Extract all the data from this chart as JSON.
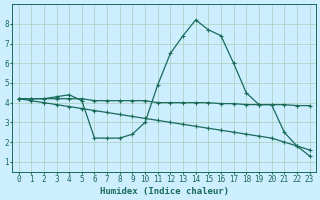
{
  "xlabel": "Humidex (Indice chaleur)",
  "bg_color": "#cceeff",
  "grid_color": "#aaccbb",
  "line_color": "#1a6b5a",
  "xlim": [
    -0.5,
    23.5
  ],
  "ylim": [
    0.5,
    9.0
  ],
  "yticks": [
    1,
    2,
    3,
    4,
    5,
    6,
    7,
    8
  ],
  "xticks": [
    0,
    1,
    2,
    3,
    4,
    5,
    6,
    7,
    8,
    9,
    10,
    11,
    12,
    13,
    14,
    15,
    16,
    17,
    18,
    19,
    20,
    21,
    22,
    23
  ],
  "series1_x": [
    0,
    1,
    2,
    3,
    4,
    5,
    6,
    7,
    8,
    9,
    10,
    11,
    12,
    13,
    14,
    15,
    16,
    17,
    18,
    19,
    20,
    21,
    22,
    23
  ],
  "series1_y": [
    4.2,
    4.2,
    4.2,
    4.2,
    4.2,
    4.2,
    4.1,
    4.1,
    4.1,
    4.1,
    4.1,
    4.0,
    4.0,
    4.0,
    4.0,
    4.0,
    3.95,
    3.95,
    3.9,
    3.9,
    3.9,
    3.9,
    3.85,
    3.85
  ],
  "series2_x": [
    0,
    1,
    2,
    3,
    4,
    5,
    6,
    7,
    8,
    9,
    10,
    11,
    12,
    13,
    14,
    15,
    16,
    17,
    18,
    19,
    20,
    21,
    22,
    23
  ],
  "series2_y": [
    4.2,
    4.1,
    4.0,
    3.9,
    3.8,
    3.7,
    3.6,
    3.5,
    3.4,
    3.3,
    3.2,
    3.1,
    3.0,
    2.9,
    2.8,
    2.7,
    2.6,
    2.5,
    2.4,
    2.3,
    2.2,
    2.0,
    1.8,
    1.6
  ],
  "series3_x": [
    0,
    1,
    2,
    3,
    4,
    5,
    6,
    7,
    8,
    9,
    10,
    11,
    12,
    13,
    14,
    15,
    16,
    17,
    18,
    19,
    20,
    21,
    22,
    23
  ],
  "series3_y": [
    4.2,
    4.2,
    4.2,
    4.3,
    4.4,
    4.1,
    2.2,
    2.2,
    2.2,
    2.4,
    3.0,
    4.9,
    6.5,
    7.4,
    8.2,
    7.7,
    7.4,
    6.0,
    4.5,
    3.9,
    3.9,
    2.5,
    1.8,
    1.3
  ]
}
